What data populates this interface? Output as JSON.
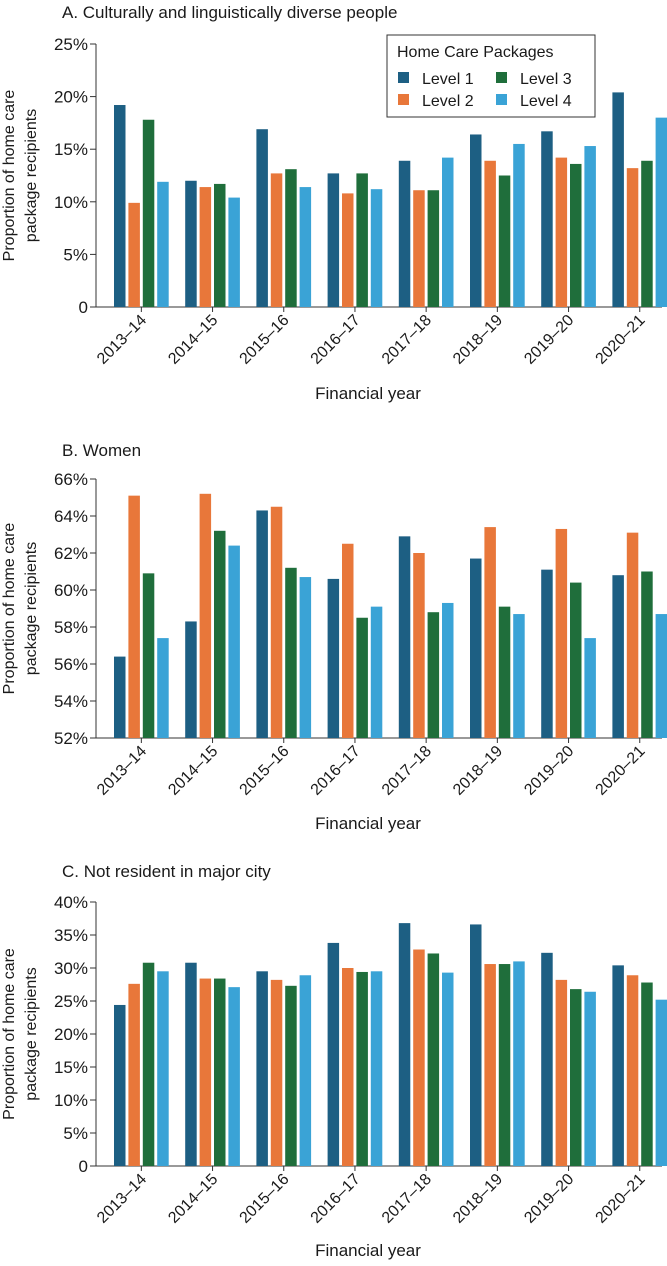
{
  "legend": {
    "title": "Home Care Packages",
    "items": [
      {
        "label": "Level 1",
        "color": "#1d5f83"
      },
      {
        "label": "Level 2",
        "color": "#e8773a"
      },
      {
        "label": "Level 3",
        "color": "#1f6e3b"
      },
      {
        "label": "Level 4",
        "color": "#3aa3d6"
      }
    ]
  },
  "chart_data": [
    {
      "type": "bar",
      "title": "A. Culturally and linguistically diverse people",
      "xlabel": "Financial year",
      "ylabel": "Proportion of home care package recipients",
      "categories": [
        "2013–14",
        "2014–15",
        "2015–16",
        "2016–17",
        "2017–18",
        "2018–19",
        "2019–20",
        "2020–21"
      ],
      "ylim": [
        0,
        25
      ],
      "yticks": [
        "0",
        "5%",
        "10%",
        "15%",
        "20%",
        "25%"
      ],
      "legend_position": "top-right",
      "grid": false,
      "series": [
        {
          "name": "Level 1",
          "values": [
            19.2,
            12.0,
            16.9,
            12.7,
            13.9,
            16.4,
            16.7,
            20.4
          ]
        },
        {
          "name": "Level 2",
          "values": [
            9.9,
            11.4,
            12.7,
            10.8,
            11.1,
            13.9,
            14.2,
            13.2
          ]
        },
        {
          "name": "Level 3",
          "values": [
            17.8,
            11.7,
            13.1,
            12.7,
            11.1,
            12.5,
            13.6,
            13.9
          ]
        },
        {
          "name": "Level 4",
          "values": [
            11.9,
            10.4,
            11.4,
            11.2,
            14.2,
            15.5,
            15.3,
            18.0
          ]
        }
      ]
    },
    {
      "type": "bar",
      "title": "B. Women",
      "xlabel": "Financial year",
      "ylabel": "Proportion of home care package recipients",
      "categories": [
        "2013–14",
        "2014–15",
        "2015–16",
        "2016–17",
        "2017–18",
        "2018–19",
        "2019–20",
        "2020–21"
      ],
      "ylim": [
        52,
        66
      ],
      "yticks": [
        "52%",
        "54%",
        "56%",
        "58%",
        "60%",
        "62%",
        "64%",
        "66%"
      ],
      "grid": false,
      "series": [
        {
          "name": "Level 1",
          "values": [
            56.4,
            58.3,
            64.3,
            60.6,
            62.9,
            61.7,
            61.1,
            60.8
          ]
        },
        {
          "name": "Level 2",
          "values": [
            65.1,
            65.2,
            64.5,
            62.5,
            62.0,
            63.4,
            63.3,
            63.1
          ]
        },
        {
          "name": "Level 3",
          "values": [
            60.9,
            63.2,
            61.2,
            58.5,
            58.8,
            59.1,
            60.4,
            61.0
          ]
        },
        {
          "name": "Level 4",
          "values": [
            57.4,
            62.4,
            60.7,
            59.1,
            59.3,
            58.7,
            57.4,
            58.7
          ]
        }
      ]
    },
    {
      "type": "bar",
      "title": "C. Not resident in major city",
      "xlabel": "Financial year",
      "ylabel": "Proportion of home care package recipients",
      "categories": [
        "2013–14",
        "2014–15",
        "2015–16",
        "2016–17",
        "2017–18",
        "2018–19",
        "2019–20",
        "2020–21"
      ],
      "ylim": [
        0,
        40
      ],
      "yticks": [
        "0",
        "5%",
        "10%",
        "15%",
        "20%",
        "25%",
        "30%",
        "35%",
        "40%"
      ],
      "grid": false,
      "series": [
        {
          "name": "Level 1",
          "values": [
            24.4,
            30.8,
            29.5,
            33.8,
            36.8,
            36.6,
            32.3,
            30.4
          ]
        },
        {
          "name": "Level 2",
          "values": [
            27.6,
            28.4,
            28.2,
            30.0,
            32.8,
            30.6,
            28.2,
            28.9
          ]
        },
        {
          "name": "Level 3",
          "values": [
            30.8,
            28.4,
            27.3,
            29.4,
            32.2,
            30.6,
            26.8,
            27.8
          ]
        },
        {
          "name": "Level 4",
          "values": [
            29.5,
            27.1,
            28.9,
            29.5,
            29.3,
            31.0,
            26.4,
            25.2
          ]
        }
      ]
    }
  ]
}
